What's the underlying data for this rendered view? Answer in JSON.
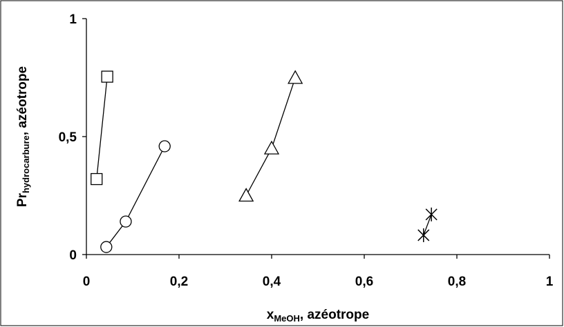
{
  "chart_data": {
    "type": "scatter",
    "xlabel": {
      "main": "x",
      "sub": "MeOH",
      "rest": ", azéotrope"
    },
    "ylabel": {
      "main": "Pr",
      "sub": "hydrocarbure",
      "rest": ", azéotrope"
    },
    "xlim": [
      0,
      1
    ],
    "xticks": [
      0,
      {
        "value": 0.2,
        "label": "0,2"
      },
      {
        "value": 0.4,
        "label": "0,4"
      },
      {
        "value": 0.6,
        "label": "0,6"
      },
      {
        "value": 0.8,
        "label": "0,8"
      },
      1
    ],
    "ylim": [
      0,
      1
    ],
    "yticks": [
      0,
      {
        "value": 0.5,
        "label": "0,5"
      },
      1
    ],
    "grid": false,
    "series": [
      {
        "marker": "square",
        "color": "#000000",
        "x": [
          0.022,
          0.045
        ],
        "values": [
          0.32,
          0.754
        ]
      },
      {
        "marker": "circle",
        "color": "#000000",
        "x": [
          0.043,
          0.085,
          0.169
        ],
        "values": [
          0.032,
          0.14,
          0.459
        ]
      },
      {
        "marker": "triangle",
        "color": "#000000",
        "x": [
          0.345,
          0.4,
          0.451
        ],
        "values": [
          0.25,
          0.45,
          0.749
        ]
      },
      {
        "marker": "star",
        "color": "#000000",
        "x": [
          0.728,
          0.745
        ],
        "values": [
          0.082,
          0.17
        ]
      }
    ]
  }
}
